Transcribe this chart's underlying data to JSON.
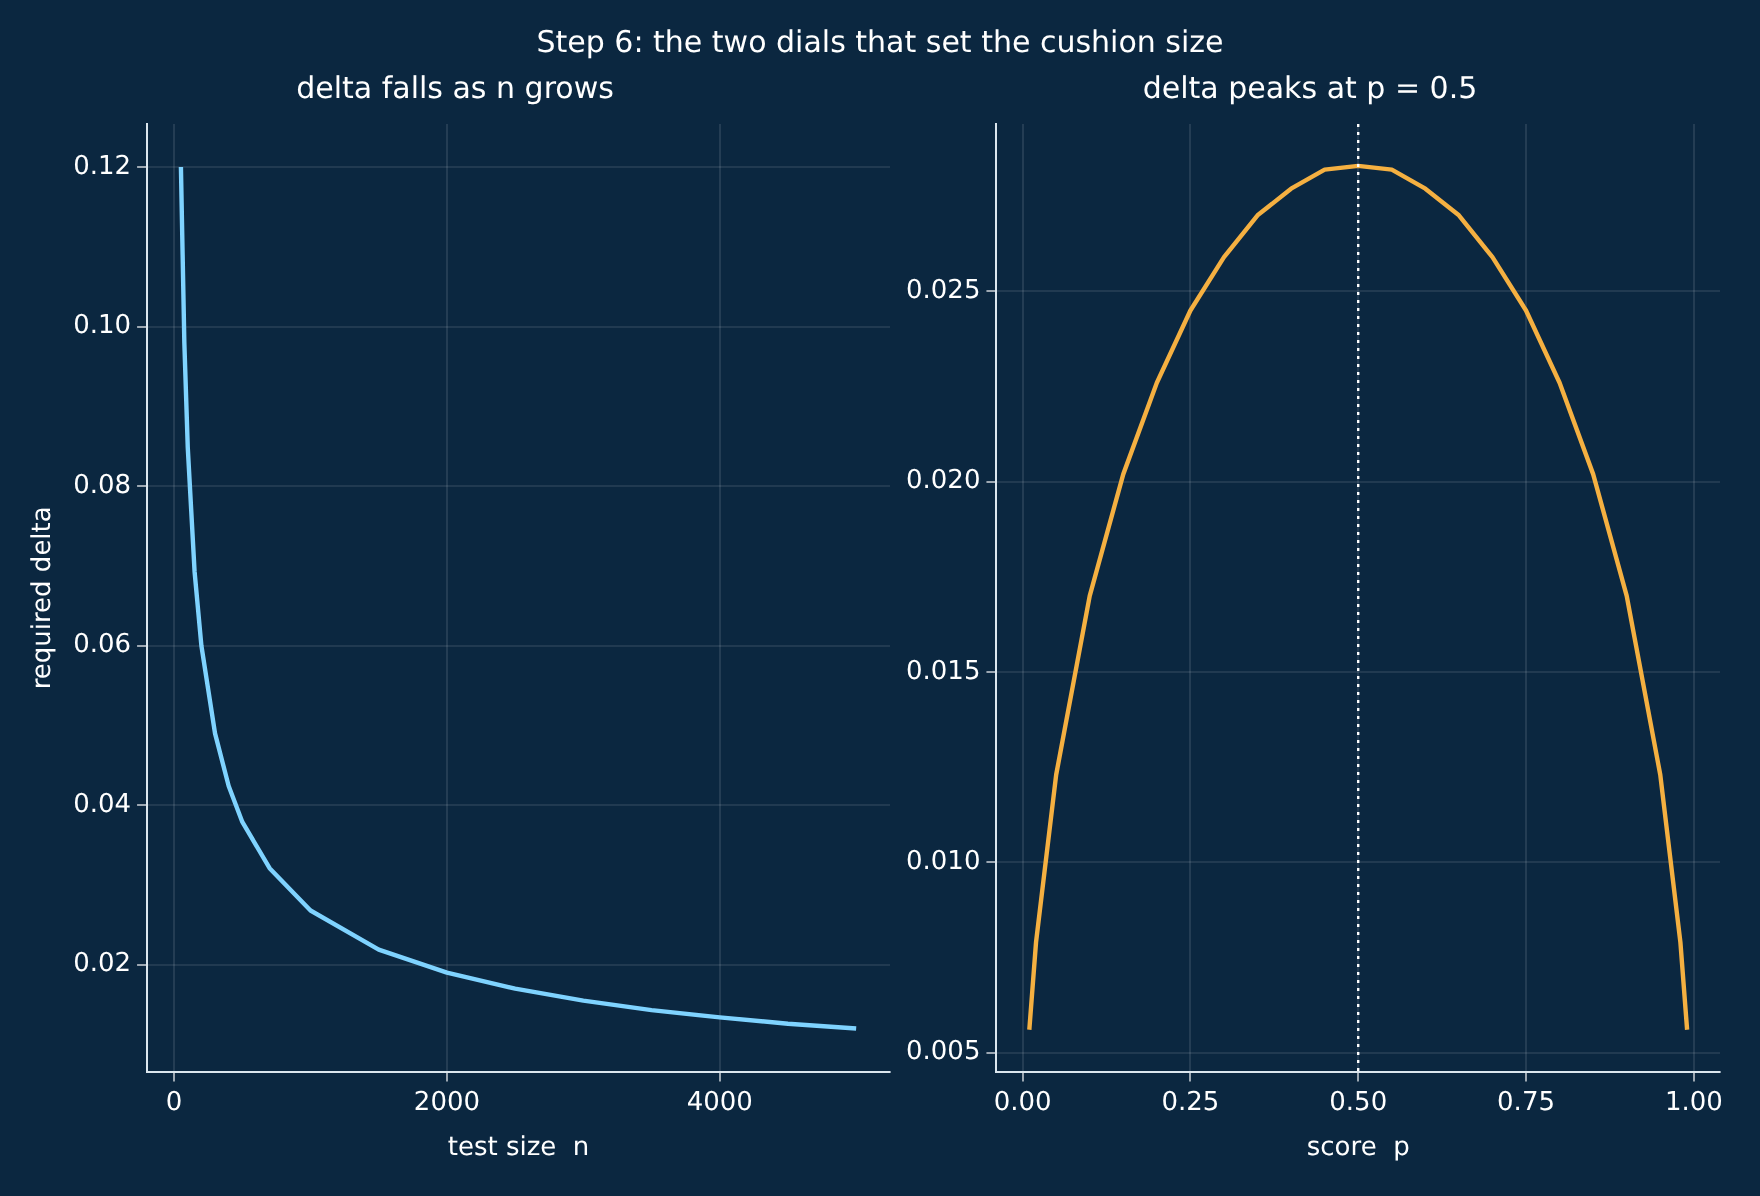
{
  "chart_data": [
    {
      "type": "other",
      "title": "Step 6: the two dials that set the cushion size"
    },
    {
      "type": "line",
      "title": "delta falls as n grows",
      "xlabel": "test size  n",
      "ylabel": "required delta",
      "grid": true,
      "marker": "none",
      "x": [
        50,
        75,
        100,
        150,
        200,
        300,
        400,
        500,
        700,
        1000,
        1500,
        2000,
        2500,
        3000,
        3500,
        4000,
        4500,
        5000
      ],
      "series": [
        {
          "color": "#7fd3ff",
          "values": [
            0.12,
            0.098,
            0.0849,
            0.0693,
            0.06,
            0.049,
            0.0424,
            0.0379,
            0.0321,
            0.0268,
            0.0219,
            0.019,
            0.017,
            0.0155,
            0.0143,
            0.0134,
            0.0126,
            0.012
          ]
        }
      ],
      "xlim": [
        -198,
        5248
      ],
      "xticks": [
        0,
        2000,
        4000
      ],
      "ylim": [
        0.0066,
        0.1254
      ],
      "yticks": [
        {
          "value": 0.02,
          "label": "0.02"
        },
        {
          "value": 0.04,
          "label": "0.04"
        },
        {
          "value": 0.06,
          "label": "0.06"
        },
        {
          "value": 0.08,
          "label": "0.08"
        },
        {
          "value": 0.1,
          "label": "0.10"
        },
        {
          "value": 0.12,
          "label": "0.12"
        }
      ]
    },
    {
      "type": "line",
      "title": "delta peaks at p = 0.5",
      "xlabel": "score  p",
      "grid": true,
      "marker": "none",
      "x": [
        0.01,
        0.02,
        0.05,
        0.1,
        0.15,
        0.2,
        0.25,
        0.3,
        0.35,
        0.4,
        0.45,
        0.5,
        0.55,
        0.6,
        0.65,
        0.7,
        0.75,
        0.8,
        0.85,
        0.9,
        0.95,
        0.98,
        0.99
      ],
      "series": [
        {
          "color": "#f5b041",
          "values": [
            0.0056,
            0.0079,
            0.0123,
            0.017,
            0.0202,
            0.0226,
            0.0245,
            0.0259,
            0.027,
            0.0277,
            0.0282,
            0.0283,
            0.0282,
            0.0277,
            0.027,
            0.0259,
            0.0245,
            0.0226,
            0.0202,
            0.017,
            0.0123,
            0.0079,
            0.0056
          ]
        }
      ],
      "xlim": [
        -0.039,
        1.039
      ],
      "xticks": [
        {
          "value": 0,
          "label": "0.00"
        },
        {
          "value": 0.25,
          "label": "0.25"
        },
        {
          "value": 0.5,
          "label": "0.50"
        },
        {
          "value": 0.75,
          "label": "0.75"
        },
        {
          "value": 1,
          "label": "1.00"
        }
      ],
      "ylim": [
        0.0045,
        0.0294
      ],
      "yticks": [
        {
          "value": 0.005,
          "label": "0.005"
        },
        {
          "value": 0.01,
          "label": "0.010"
        },
        {
          "value": 0.015,
          "label": "0.015"
        },
        {
          "value": 0.02,
          "label": "0.020"
        },
        {
          "value": 0.025,
          "label": "0.025"
        }
      ],
      "ref_lines": [
        {
          "axis": "x",
          "value": 0.5,
          "color": "#ffffff",
          "line_style": "dotted"
        }
      ]
    }
  ]
}
